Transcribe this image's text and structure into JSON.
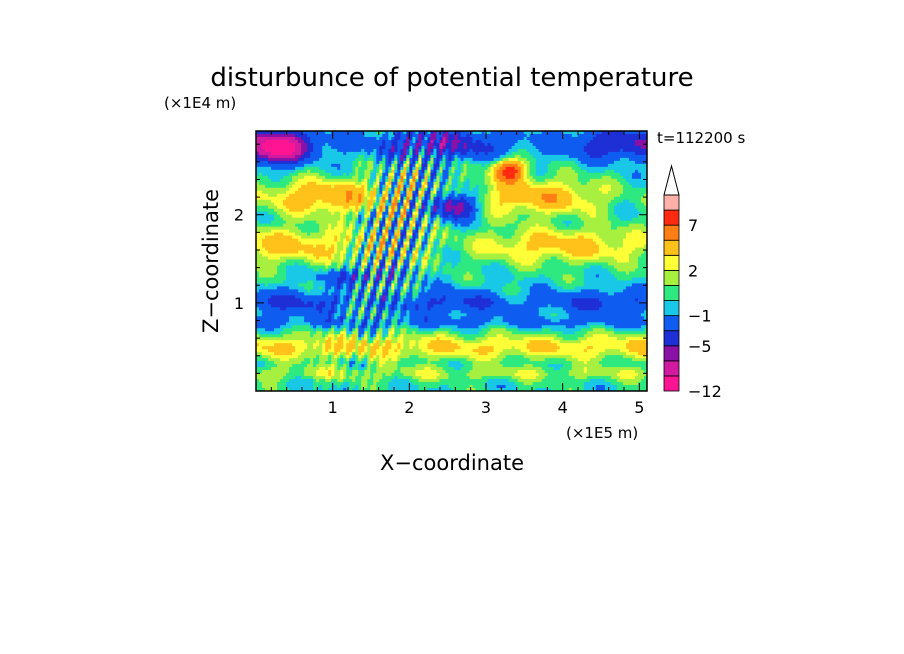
{
  "chart_data": {
    "type": "heatmap",
    "title": "disturbunce of potential temperature",
    "xlabel": "X−coordinate",
    "ylabel": "Z−coordinate",
    "x_unit": "(×1E5 m)",
    "y_unit": "(×1E4 m)",
    "time_label": "t=112200 s",
    "xlim": [
      0,
      5.1
    ],
    "ylim": [
      0,
      2.95
    ],
    "xticks": [
      1,
      2,
      3,
      4,
      5
    ],
    "yticks": [
      1,
      2
    ],
    "xtick_labels": [
      "1",
      "2",
      "3",
      "4",
      "5"
    ],
    "ytick_labels": [
      "1",
      "2"
    ],
    "colorbar": {
      "levels": [
        -12,
        -10,
        -7,
        -5,
        -3,
        -1,
        0,
        1,
        2,
        3,
        5,
        7,
        9,
        11
      ],
      "colors": [
        "#ff1493",
        "#d01ba0",
        "#8a10a6",
        "#1f2fd6",
        "#0f5cf0",
        "#18c8e6",
        "#2ee880",
        "#a8f040",
        "#ffff38",
        "#ffc21a",
        "#ff7f14",
        "#ff2a10",
        "#ffb0a8"
      ],
      "extend_color": "#ffffff",
      "tick_values": [
        -12,
        -5,
        -1,
        2,
        7
      ],
      "tick_labels": [
        "−12",
        "−5",
        "−1",
        "2",
        "7"
      ]
    },
    "field": {
      "description": "2D field of potential temperature disturbance over x in [0, 5.1] (1E5 m) and z in [0, 2.95] (1E4 m)",
      "features": [
        {
          "kind": "positive band",
          "z": 0.5,
          "value": 2.5
        },
        {
          "kind": "negative band",
          "z": 1.0,
          "value": -2
        },
        {
          "kind": "negative band",
          "z": 1.3,
          "value": -3
        },
        {
          "kind": "positive band",
          "z": 1.7,
          "value": 3
        },
        {
          "kind": "positive band",
          "z": 2.2,
          "value": 4
        },
        {
          "kind": "negative band",
          "z": 2.75,
          "value": -4
        },
        {
          "kind": "warm anomaly",
          "x": 3.3,
          "z": 2.5,
          "value": 7
        },
        {
          "kind": "cold anomaly",
          "x": 0.3,
          "z": 2.7,
          "value": -9
        },
        {
          "kind": "cold anomaly",
          "x": 2.6,
          "z": 2.1,
          "value": -6
        },
        {
          "kind": "oscillating plume",
          "x": 1.6,
          "z_range": [
            0,
            2.95
          ],
          "amplitude": 4
        }
      ]
    }
  }
}
